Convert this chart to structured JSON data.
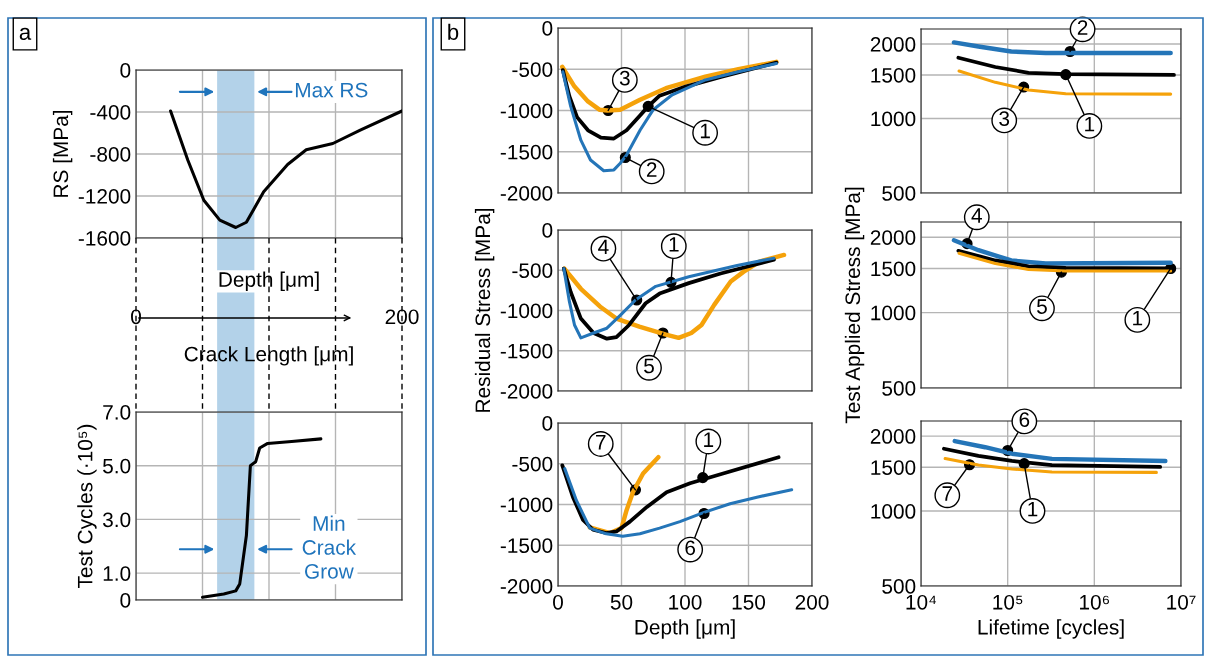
{
  "chart_data": [
    {
      "type": "line",
      "ylabel": "RS [MPa]",
      "xlabel": "Depth [μm]",
      "xlim": [
        0,
        200
      ],
      "xticks": [
        {
          "value": 0,
          "label": "0"
        },
        {
          "value": 50,
          "label": null
        },
        {
          "value": 100,
          "label": null
        },
        {
          "value": 150,
          "label": null
        },
        {
          "value": 200,
          "label": "200"
        }
      ],
      "ylim": [
        -1600,
        0
      ],
      "yticks": [
        0,
        -400,
        -800,
        -1200,
        -1600
      ],
      "grid": true,
      "series": [
        {
          "color": "#000000",
          "x": [
            26,
            39,
            51,
            63,
            75,
            83,
            96,
            114,
            128,
            148,
            169,
            200
          ],
          "values": [
            -390,
            -860,
            -1240,
            -1430,
            -1500,
            -1450,
            -1160,
            -900,
            -760,
            -700,
            -570,
            -390
          ]
        }
      ],
      "bands": [
        {
          "axis": "x",
          "from": 61,
          "to": 89,
          "label": "Max RS",
          "color": "#b3d2e9"
        }
      ],
      "annotations": [
        "a"
      ]
    },
    {
      "type": "line",
      "ylabel": "Test Cycles (·10⁵)",
      "xlabel": "Crack Length [μm]",
      "xlim": [
        0,
        200
      ],
      "xticks": [
        0,
        50,
        100,
        150,
        200
      ],
      "ylim": [
        0,
        7
      ],
      "yticks": [
        0,
        {
          "value": 1,
          "label": "1.0"
        },
        {
          "value": 3,
          "label": "3.0"
        },
        {
          "value": 5,
          "label": "5.0"
        },
        {
          "value": 7,
          "label": "7.0"
        }
      ],
      "grid": true,
      "tick_labels": "y",
      "series": [
        {
          "color": "#000000",
          "x": [
            50,
            66,
            75,
            78,
            83,
            86,
            90,
            93,
            99,
            117,
            139
          ],
          "values": [
            0.1,
            0.22,
            0.34,
            0.6,
            2.4,
            5.0,
            5.15,
            5.66,
            5.83,
            5.9,
            6.0
          ]
        }
      ],
      "bands": [
        {
          "axis": "x",
          "from": 61,
          "to": 89,
          "label": "Min\nCrack\nGrow",
          "color": "#b3d2e9"
        }
      ]
    },
    {
      "type": "line",
      "xlim": [
        0,
        200
      ],
      "xticks": [
        0,
        50,
        100,
        150,
        200
      ],
      "ylim": [
        -2000,
        0
      ],
      "yticks": [
        0,
        -500,
        -1000,
        -1500,
        -2000
      ],
      "grid": true,
      "tick_labels": "y",
      "series": [
        {
          "color": "#f5a20a",
          "x": [
            3.3,
            13,
            23.6,
            32.6,
            39,
            49,
            64.6,
            85,
            116,
            142,
            172
          ],
          "values": [
            -470,
            -710,
            -890,
            -990,
            -1000,
            -990,
            -870,
            -730,
            -590,
            -500,
            -410
          ]
        },
        {
          "color": "#000000",
          "x": [
            3.8,
            9,
            15,
            23.6,
            33.8,
            44,
            54,
            64.6,
            71,
            80,
            100.5,
            129,
            172
          ],
          "values": [
            -510,
            -830,
            -1080,
            -1240,
            -1330,
            -1340,
            -1240,
            -1060,
            -950,
            -820,
            -710,
            -590,
            -420
          ]
        },
        {
          "color": "#2475b8",
          "x": [
            3.8,
            10,
            18,
            25.6,
            36,
            44,
            49,
            54,
            64.6,
            75,
            90,
            116,
            142,
            172
          ],
          "values": [
            -530,
            -950,
            -1360,
            -1600,
            -1730,
            -1720,
            -1640,
            -1540,
            -1240,
            -990,
            -810,
            -630,
            -530,
            -430
          ]
        }
      ],
      "annotations": [
        "b",
        {
          "text": "3",
          "x": 39.5,
          "y": -1000
        },
        {
          "text": "1",
          "x": 71,
          "y": -950
        },
        {
          "text": "2",
          "x": 53,
          "y": -1570
        }
      ]
    },
    {
      "type": "line",
      "ylabel": "Residual Stress [MPa]",
      "xlim": [
        0,
        200
      ],
      "xticks": [
        0,
        50,
        100,
        150,
        200
      ],
      "ylim": [
        -2000,
        0
      ],
      "yticks": [
        0,
        -500,
        -1000,
        -1500,
        -2000
      ],
      "grid": true,
      "tick_labels": "y",
      "series": [
        {
          "color": "#f5a20a",
          "x": [
            5,
            18,
            33,
            46,
            64,
            85,
            95,
            105,
            113,
            123,
            136,
            146,
            159,
            178
          ],
          "values": [
            -480,
            -730,
            -950,
            -1100,
            -1200,
            -1300,
            -1340,
            -1280,
            -1180,
            -930,
            -640,
            -520,
            -390,
            -310
          ]
        },
        {
          "color": "#000000",
          "x": [
            4.6,
            10,
            18,
            28,
            38.5,
            46,
            56,
            69,
            80,
            103,
            128,
            170
          ],
          "values": [
            -480,
            -770,
            -1100,
            -1280,
            -1350,
            -1330,
            -1180,
            -910,
            -790,
            -660,
            -540,
            -370
          ]
        },
        {
          "color": "#2475b8",
          "x": [
            4.6,
            9,
            13,
            18,
            28,
            38.5,
            49,
            61,
            77,
            103,
            141,
            170
          ],
          "values": [
            -480,
            -890,
            -1180,
            -1340,
            -1280,
            -1220,
            -1060,
            -870,
            -700,
            -580,
            -440,
            -350
          ]
        }
      ],
      "annotations": [
        {
          "text": "4",
          "x": 62,
          "y": -870
        },
        {
          "text": "1",
          "x": 89,
          "y": -650
        },
        {
          "text": "5",
          "x": 82.6,
          "y": -1280
        }
      ]
    },
    {
      "type": "line",
      "xlabel": "Depth [μm]",
      "xlim": [
        0,
        200
      ],
      "xticks": [
        0,
        50,
        100,
        150,
        200
      ],
      "ylim": [
        -2000,
        0
      ],
      "yticks": [
        0,
        -500,
        -1000,
        -1500,
        -2000
      ],
      "grid": true,
      "series": [
        {
          "color": "#f5a20a",
          "x": [
            25,
            41,
            50,
            54,
            59,
            67,
            79
          ],
          "values": [
            -1280,
            -1350,
            -1290,
            -1070,
            -850,
            -620,
            -420
          ]
        },
        {
          "color": "#000000",
          "x": [
            3.4,
            11.8,
            19.7,
            27.6,
            38,
            46,
            56.6,
            70,
            85.5,
            104,
            130,
            173.7
          ],
          "values": [
            -520,
            -910,
            -1190,
            -1310,
            -1350,
            -1330,
            -1210,
            -1030,
            -850,
            -740,
            -620,
            -420
          ]
        },
        {
          "color": "#2475b8",
          "x": [
            5.3,
            14.5,
            25,
            38,
            51,
            64.5,
            80,
            96,
            114.5,
            135.5,
            156.6,
            184
          ],
          "values": [
            -560,
            -950,
            -1290,
            -1360,
            -1390,
            -1360,
            -1290,
            -1210,
            -1100,
            -990,
            -910,
            -820
          ]
        }
      ],
      "annotations": [
        {
          "text": "7",
          "x": 61,
          "y": -820
        },
        {
          "text": "1",
          "x": 114,
          "y": -670
        },
        {
          "text": "6",
          "x": 115,
          "y": -1110
        }
      ]
    },
    {
      "type": "line",
      "log": "xy",
      "xlim": [
        10000,
        10000000
      ],
      "xticks": [
        {
          "value": 10000,
          "label": null
        },
        {
          "value": 100000,
          "label": null
        },
        {
          "value": 1000000,
          "label": null
        },
        {
          "value": 10000000,
          "label": null
        }
      ],
      "ylim": [
        500,
        2300
      ],
      "yticks": [
        500,
        1000,
        1500,
        2000
      ],
      "grid": true,
      "tick_labels": "y",
      "series": [
        {
          "color": "#2475b8",
          "x": [
            24000,
            46000,
            110000,
            275000,
            7600000
          ],
          "values": [
            2030,
            1955,
            1865,
            1840,
            1840
          ]
        },
        {
          "color": "#000000",
          "x": [
            27000,
            72000,
            174000,
            468000,
            8300000
          ],
          "values": [
            1760,
            1615,
            1530,
            1510,
            1500
          ]
        },
        {
          "color": "#f5a20a",
          "x": [
            27500,
            72000,
            174000,
            468000,
            7600000
          ],
          "values": [
            1555,
            1400,
            1305,
            1260,
            1255
          ]
        }
      ],
      "annotations": [
        {
          "text": "2",
          "x": 525000,
          "y": 1865
        },
        {
          "text": "1",
          "x": 468000,
          "y": 1505
        },
        {
          "text": "3",
          "x": 153000,
          "y": 1340
        }
      ]
    },
    {
      "type": "line",
      "log": "xy",
      "ylabel": "Test Applied Stress [MPa]",
      "xlim": [
        10000,
        10000000
      ],
      "xticks": [
        {
          "value": 10000,
          "label": null
        },
        {
          "value": 100000,
          "label": null
        },
        {
          "value": 1000000,
          "label": null
        },
        {
          "value": 10000000,
          "label": null
        }
      ],
      "ylim": [
        500,
        2300
      ],
      "yticks": [
        500,
        1000,
        1500,
        2000
      ],
      "grid": true,
      "tick_labels": "y",
      "series": [
        {
          "color": "#2475b8",
          "x": [
            24000,
            46000,
            110000,
            275000,
            7600000
          ],
          "values": [
            1945,
            1775,
            1615,
            1570,
            1580
          ]
        },
        {
          "color": "#000000",
          "x": [
            27000,
            72000,
            174000,
            468000,
            8300000
          ],
          "values": [
            1765,
            1615,
            1530,
            1510,
            1500
          ]
        },
        {
          "color": "#f5a20a",
          "x": [
            27500,
            72000,
            174000,
            468000,
            7600000
          ],
          "values": [
            1725,
            1570,
            1485,
            1465,
            1465
          ]
        }
      ],
      "annotations": [
        {
          "text": "4",
          "x": 34000,
          "y": 1885
        },
        {
          "text": "5",
          "x": 417000,
          "y": 1450
        },
        {
          "text": "1",
          "x": 7600000,
          "y": 1500
        }
      ]
    },
    {
      "type": "line",
      "log": "xy",
      "xlabel": "Lifetime [cycles]",
      "xlim": [
        10000,
        10000000
      ],
      "xticks": [
        {
          "value": 10000,
          "label": "10⁴"
        },
        {
          "value": 100000,
          "label": "10⁵"
        },
        {
          "value": 1000000,
          "label": "10⁶"
        },
        {
          "value": 10000000,
          "label": "10⁷"
        }
      ],
      "ylim": [
        500,
        2300
      ],
      "yticks": [
        500,
        1000,
        1500,
        2000
      ],
      "grid": true,
      "series": [
        {
          "color": "#2475b8",
          "x": [
            24500,
            55000,
            112000,
            324000,
            6600000
          ],
          "values": [
            1910,
            1805,
            1700,
            1620,
            1590
          ]
        },
        {
          "color": "#000000",
          "x": [
            18400,
            46000,
            112000,
            324000,
            5750000
          ],
          "values": [
            1780,
            1665,
            1590,
            1530,
            1505
          ]
        },
        {
          "color": "#f5a20a",
          "x": [
            19000,
            46000,
            112000,
            324000,
            5200000
          ],
          "values": [
            1625,
            1530,
            1475,
            1435,
            1430
          ]
        }
      ],
      "annotations": [
        {
          "text": "6",
          "x": 100000,
          "y": 1750
        },
        {
          "text": "1",
          "x": 155000,
          "y": 1550
        },
        {
          "text": "7",
          "x": 36300,
          "y": 1535
        }
      ]
    }
  ]
}
